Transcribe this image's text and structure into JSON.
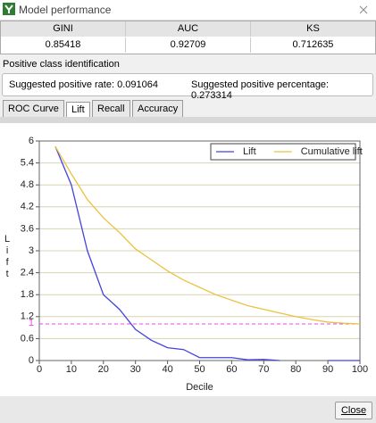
{
  "window": {
    "title": "Model performance"
  },
  "table": {
    "header": [
      "GINI",
      "AUC",
      "KS"
    ],
    "rows": [
      [
        "0.85418",
        "0.92709",
        "0.712635"
      ]
    ]
  },
  "section": {
    "label": "Positive class identification",
    "suggested_rate": "Suggested positive rate: 0.091064",
    "suggested_percentage": "Suggested positive percentage: 0.273314"
  },
  "tabs": [
    "ROC Curve",
    "Lift",
    "Recall",
    "Accuracy"
  ],
  "active_tab": 1,
  "chart_data": {
    "type": "line",
    "x_label": "Decile",
    "y_label": "Lift",
    "x": [
      5,
      10,
      15,
      20,
      25,
      30,
      35,
      40,
      45,
      50,
      55,
      60,
      65,
      70,
      75,
      80,
      85,
      90,
      95,
      100
    ],
    "series": [
      {
        "name": "Lift",
        "color": "#4444dd",
        "values": [
          5.85,
          4.8,
          3.0,
          1.8,
          1.4,
          0.85,
          0.55,
          0.35,
          0.3,
          0.08,
          0.08,
          0.08,
          0.02,
          0.03,
          0.0,
          null,
          null,
          0.0,
          0.0,
          0.0
        ]
      },
      {
        "name": "Cumulative lift",
        "color": "#ebc240",
        "values": [
          5.85,
          5.1,
          4.4,
          3.9,
          3.5,
          3.05,
          2.75,
          2.45,
          2.2,
          2.0,
          1.8,
          1.65,
          1.5,
          1.4,
          1.3,
          1.2,
          1.12,
          1.05,
          1.02,
          1.0
        ]
      }
    ],
    "xlim": [
      0,
      100
    ],
    "xticks": [
      0,
      10,
      20,
      30,
      40,
      50,
      60,
      70,
      80,
      90,
      100
    ],
    "ylim": [
      0,
      6
    ],
    "yticks": [
      0,
      0.6,
      1.2,
      1.8,
      2.4,
      3,
      3.6,
      4.2,
      4.8,
      5.4,
      6
    ],
    "reference_line": {
      "value": 1,
      "color": "#ee44ee"
    },
    "grid": true,
    "legend": "top-right"
  },
  "button": {
    "label": "Close"
  }
}
